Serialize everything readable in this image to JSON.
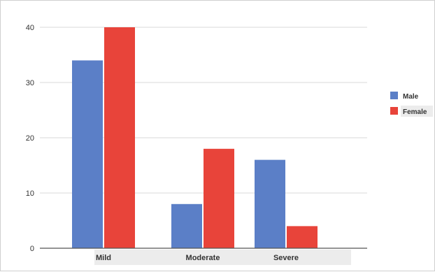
{
  "chart_data": {
    "type": "bar",
    "categories": [
      "Mild",
      "Moderate",
      "Severe"
    ],
    "series": [
      {
        "name": "Male",
        "values": [
          34,
          8,
          16
        ],
        "color": "#5b7fc7"
      },
      {
        "name": "Female",
        "values": [
          40,
          18,
          4
        ],
        "color": "#e8443a"
      }
    ],
    "ylim": [
      0,
      40
    ],
    "yticks": [
      0,
      10,
      20,
      30,
      40
    ],
    "grid": true,
    "legend_position": "right"
  }
}
